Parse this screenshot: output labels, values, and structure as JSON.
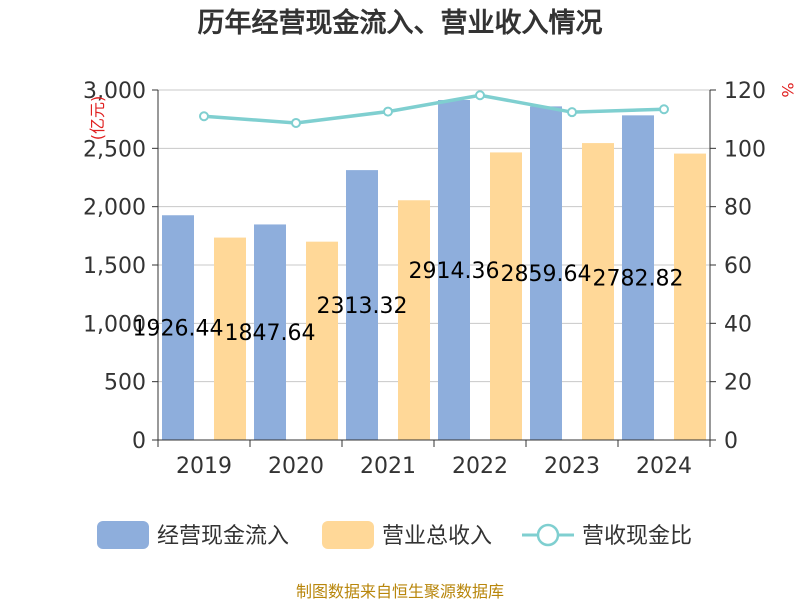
{
  "chart_data": {
    "type": "bar",
    "title": "历年经营现金流入、营业收入情况",
    "categories": [
      "2019",
      "2020",
      "2021",
      "2022",
      "2023",
      "2024"
    ],
    "series": [
      {
        "name": "经营现金流入",
        "axis": "left",
        "kind": "bar",
        "color": "#8eaedc",
        "values": [
          1926.44,
          1847.64,
          2313.32,
          2914.36,
          2859.64,
          2782.82
        ],
        "labels": [
          "1926.44",
          "1847.64",
          "2313.32",
          "2914.36",
          "2859.64",
          "2782.82"
        ]
      },
      {
        "name": "营业总收入",
        "axis": "left",
        "kind": "bar",
        "color": "#ffd898",
        "values": [
          1735,
          1700,
          2055,
          2465,
          2545,
          2455
        ]
      },
      {
        "name": "营收现金比",
        "axis": "right",
        "kind": "line",
        "color": "#7fcfd0",
        "values": [
          111.0,
          108.7,
          112.6,
          118.2,
          112.4,
          113.4
        ]
      }
    ],
    "left_axis": {
      "unit": "亿元",
      "ylim": [
        0,
        3000
      ],
      "ticks": [
        "0",
        "500",
        "1,000",
        "1,500",
        "2,000",
        "2,500",
        "3,000"
      ]
    },
    "right_axis": {
      "unit": "%",
      "ylim": [
        0,
        120
      ],
      "ticks": [
        "0",
        "20",
        "40",
        "60",
        "80",
        "100",
        "120"
      ]
    },
    "legend": {
      "position": "bottom"
    },
    "grid": true
  },
  "source_text": "制图数据来自恒生聚源数据库"
}
